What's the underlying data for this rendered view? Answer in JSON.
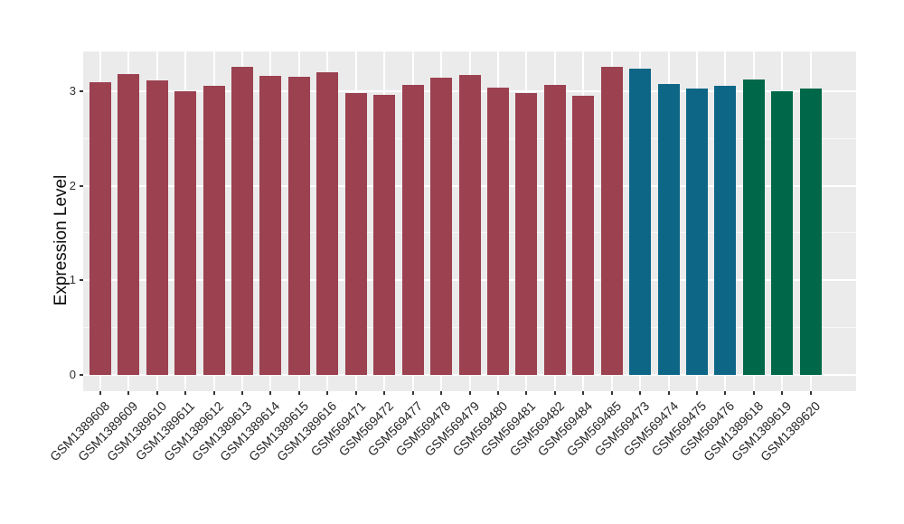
{
  "figure": {
    "title": "",
    "background_color": "#FFFFFF",
    "panel_background_color": "#EBEBEB",
    "gridline_color": "#FFFFFF",
    "axis_text_color": "#303030",
    "axis_title_color": "#0A0A0A"
  },
  "chart_data": {
    "type": "bar",
    "title": "",
    "xlabel": "",
    "ylabel": "Expression Level",
    "ylim": [
      0,
      3.44
    ],
    "yticks": [
      0,
      1,
      2,
      3
    ],
    "yticks_minor": [
      0.5,
      1.5,
      2.5
    ],
    "grid": true,
    "legend_position": "none",
    "x_tick_rotation_deg": 45,
    "categories": [
      "GSM1389608",
      "GSM1389609",
      "GSM1389610",
      "GSM1389611",
      "GSM1389612",
      "GSM1389613",
      "GSM1389614",
      "GSM1389615",
      "GSM1389616",
      "GSM569471",
      "GSM569472",
      "GSM569477",
      "GSM569478",
      "GSM569479",
      "GSM569480",
      "GSM569481",
      "GSM569482",
      "GSM569484",
      "GSM569485",
      "GSM569473",
      "GSM569474",
      "GSM569475",
      "GSM569476",
      "GSM1389618",
      "GSM1389619",
      "GSM1389620"
    ],
    "values": [
      3.1,
      3.18,
      3.11,
      3.0,
      3.06,
      3.26,
      3.16,
      3.15,
      3.2,
      2.98,
      2.96,
      3.07,
      3.14,
      3.17,
      3.04,
      2.98,
      3.07,
      2.95,
      3.26,
      3.24,
      3.08,
      3.03,
      3.06,
      3.12,
      3.0,
      3.03
    ],
    "bar_groups": [
      0,
      0,
      0,
      0,
      0,
      0,
      0,
      0,
      0,
      0,
      0,
      0,
      0,
      0,
      0,
      0,
      0,
      0,
      0,
      1,
      1,
      1,
      1,
      2,
      2,
      2
    ],
    "group_colors": [
      "#9B4150",
      "#0E6687",
      "#006848"
    ]
  }
}
